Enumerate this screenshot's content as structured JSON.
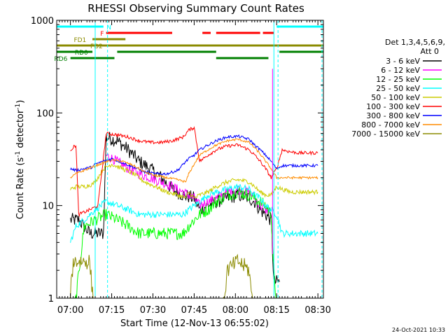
{
  "chart_data": {
    "type": "line",
    "title": "RHESSI Observing Summary Count Rates",
    "xlabel": "Start Time (12-Nov-13 06:55:02)",
    "ylabel_main": "Count Rate (s",
    "ylabel_sup": "-1",
    "ylabel_tail": " detector",
    "ylabel_end": ")",
    "yscale": "log",
    "ylim": [
      1,
      1000
    ],
    "xlim_minutes": [
      0,
      97
    ],
    "x_ticks": [
      {
        "t": 5,
        "label": "07:00"
      },
      {
        "t": 20,
        "label": "07:15"
      },
      {
        "t": 35,
        "label": "07:30"
      },
      {
        "t": 50,
        "label": "07:45"
      },
      {
        "t": 65,
        "label": "08:00"
      },
      {
        "t": 80,
        "label": "08:15"
      },
      {
        "t": 95,
        "label": "08:30"
      }
    ],
    "y_ticks": [
      {
        "v": 1,
        "label": "1"
      },
      {
        "v": 10,
        "label": "10"
      },
      {
        "v": 100,
        "label": "100"
      },
      {
        "v": 1000,
        "label": "1000"
      }
    ],
    "legend_header": [
      "Det 1,3,4,5,6,9,",
      "Att 0"
    ],
    "series": [
      {
        "name": "3 - 6 keV",
        "color": "#000000",
        "level": "baseline"
      },
      {
        "name": "6 - 12 keV",
        "color": "#ff00ff",
        "level": "baseline"
      },
      {
        "name": "12 - 25 keV",
        "color": "#00ff00",
        "level": "baseline"
      },
      {
        "name": "25 - 50 keV",
        "color": "#00ffff",
        "level": "baseline"
      },
      {
        "name": "50 - 100 keV",
        "color": "#cccc00",
        "level": "baseline"
      },
      {
        "name": "100 - 300 keV",
        "color": "#ff0000",
        "level": "baseline"
      },
      {
        "name": "300 - 800 keV",
        "color": "#0000ff",
        "level": "baseline"
      },
      {
        "name": "800 - 7000 keV",
        "color": "#ff8c00",
        "level": "baseline"
      },
      {
        "name": "7000 - 15000 keV",
        "color": "#8b8b00",
        "level": "baseline"
      }
    ],
    "series_points": [
      {
        "idx": 0,
        "pts": [
          [
            5,
            7
          ],
          [
            8,
            7
          ],
          [
            12,
            5
          ],
          [
            14,
            5
          ],
          [
            17,
            5
          ],
          [
            18,
            55
          ],
          [
            22,
            50
          ],
          [
            26,
            40
          ],
          [
            30,
            30
          ],
          [
            34,
            25
          ],
          [
            38,
            20
          ],
          [
            42,
            15
          ],
          [
            46,
            13
          ],
          [
            50,
            12
          ],
          [
            52,
            9
          ],
          [
            55,
            10
          ],
          [
            58,
            11
          ],
          [
            62,
            12
          ],
          [
            66,
            13
          ],
          [
            70,
            12
          ],
          [
            72,
            11
          ],
          [
            74,
            9
          ],
          [
            76,
            8
          ],
          [
            78,
            7
          ],
          [
            79,
            1.5
          ],
          [
            81,
            1.5
          ]
        ]
      },
      {
        "idx": 1,
        "pts": [
          [
            18,
            35
          ],
          [
            22,
            30
          ],
          [
            26,
            25
          ],
          [
            30,
            22
          ],
          [
            34,
            20
          ],
          [
            38,
            18
          ],
          [
            42,
            16
          ],
          [
            46,
            14
          ],
          [
            50,
            12
          ],
          [
            52,
            10
          ],
          [
            55,
            11
          ],
          [
            58,
            12
          ],
          [
            62,
            14
          ],
          [
            66,
            15
          ],
          [
            70,
            14
          ],
          [
            72,
            12
          ],
          [
            74,
            10
          ],
          [
            76,
            9
          ],
          [
            78,
            9
          ]
        ]
      },
      {
        "idx": 2,
        "pts": [
          [
            5,
            0.5
          ],
          [
            7,
            1
          ],
          [
            10,
            6
          ],
          [
            14,
            7
          ],
          [
            18,
            8
          ],
          [
            22,
            7
          ],
          [
            26,
            6
          ],
          [
            30,
            5
          ],
          [
            34,
            5
          ],
          [
            38,
            5
          ],
          [
            42,
            5
          ],
          [
            46,
            5
          ],
          [
            48,
            6
          ],
          [
            50,
            7
          ],
          [
            52,
            8
          ],
          [
            55,
            9
          ],
          [
            58,
            11
          ],
          [
            62,
            13
          ],
          [
            66,
            14
          ],
          [
            70,
            13
          ],
          [
            72,
            12
          ],
          [
            74,
            11
          ],
          [
            76,
            10
          ],
          [
            78,
            8
          ],
          [
            80,
            0.5
          ],
          [
            82,
            0.5
          ]
        ]
      },
      {
        "idx": 3,
        "pts": [
          [
            5,
            4
          ],
          [
            7,
            6
          ],
          [
            10,
            7
          ],
          [
            14,
            9
          ],
          [
            18,
            11
          ],
          [
            22,
            10
          ],
          [
            26,
            9
          ],
          [
            30,
            8
          ],
          [
            34,
            8
          ],
          [
            38,
            8
          ],
          [
            42,
            8
          ],
          [
            46,
            8
          ],
          [
            48,
            9
          ],
          [
            50,
            10
          ],
          [
            52,
            11
          ],
          [
            55,
            13
          ],
          [
            58,
            14
          ],
          [
            62,
            15
          ],
          [
            66,
            16
          ],
          [
            70,
            15
          ],
          [
            72,
            13
          ],
          [
            74,
            12
          ],
          [
            76,
            10
          ],
          [
            78,
            9
          ],
          [
            80,
            8
          ],
          [
            82,
            5
          ],
          [
            85,
            5
          ],
          [
            88,
            5
          ],
          [
            91,
            5
          ],
          [
            95,
            5
          ]
        ]
      },
      {
        "idx": 4,
        "pts": [
          [
            5,
            15
          ],
          [
            7,
            16
          ],
          [
            10,
            16
          ],
          [
            13,
            17
          ],
          [
            14,
            18
          ],
          [
            17,
            25
          ],
          [
            20,
            28
          ],
          [
            24,
            25
          ],
          [
            28,
            22
          ],
          [
            32,
            18
          ],
          [
            36,
            16
          ],
          [
            40,
            14
          ],
          [
            44,
            13
          ],
          [
            47,
            12
          ],
          [
            48,
            14
          ],
          [
            50,
            12
          ],
          [
            52,
            13
          ],
          [
            55,
            14
          ],
          [
            58,
            16
          ],
          [
            62,
            18
          ],
          [
            66,
            19
          ],
          [
            70,
            18
          ],
          [
            72,
            16
          ],
          [
            74,
            14
          ],
          [
            76,
            13
          ],
          [
            78,
            13
          ],
          [
            80,
            16
          ],
          [
            82,
            15
          ],
          [
            85,
            14
          ],
          [
            88,
            14
          ],
          [
            91,
            14
          ],
          [
            95,
            14
          ]
        ]
      },
      {
        "idx": 5,
        "pts": [
          [
            5,
            40
          ],
          [
            7,
            45
          ],
          [
            8,
            8
          ],
          [
            12,
            9
          ],
          [
            15,
            10
          ],
          [
            18,
            60
          ],
          [
            22,
            58
          ],
          [
            26,
            55
          ],
          [
            30,
            50
          ],
          [
            34,
            48
          ],
          [
            38,
            48
          ],
          [
            42,
            50
          ],
          [
            46,
            55
          ],
          [
            48,
            65
          ],
          [
            50,
            70
          ],
          [
            52,
            30
          ],
          [
            55,
            35
          ],
          [
            58,
            40
          ],
          [
            62,
            44
          ],
          [
            66,
            45
          ],
          [
            70,
            40
          ],
          [
            72,
            35
          ],
          [
            74,
            30
          ],
          [
            76,
            25
          ],
          [
            78,
            20
          ],
          [
            80,
            25
          ],
          [
            82,
            40
          ],
          [
            85,
            38
          ],
          [
            88,
            37
          ],
          [
            91,
            37
          ],
          [
            95,
            37
          ]
        ]
      },
      {
        "idx": 6,
        "pts": [
          [
            5,
            25
          ],
          [
            7,
            24
          ],
          [
            10,
            25
          ],
          [
            13,
            26
          ],
          [
            14,
            28
          ],
          [
            17,
            30
          ],
          [
            20,
            32
          ],
          [
            24,
            29
          ],
          [
            28,
            26
          ],
          [
            32,
            23
          ],
          [
            36,
            22
          ],
          [
            40,
            22
          ],
          [
            44,
            24
          ],
          [
            47,
            30
          ],
          [
            48,
            32
          ],
          [
            50,
            35
          ],
          [
            52,
            40
          ],
          [
            55,
            45
          ],
          [
            58,
            50
          ],
          [
            62,
            55
          ],
          [
            66,
            56
          ],
          [
            70,
            52
          ],
          [
            72,
            45
          ],
          [
            74,
            40
          ],
          [
            76,
            35
          ],
          [
            78,
            30
          ],
          [
            80,
            25
          ],
          [
            82,
            27
          ],
          [
            85,
            27
          ],
          [
            88,
            27
          ],
          [
            91,
            27
          ],
          [
            95,
            27
          ]
        ]
      },
      {
        "idx": 7,
        "pts": [
          [
            5,
            20
          ],
          [
            7,
            22
          ],
          [
            10,
            24
          ],
          [
            13,
            26
          ],
          [
            17,
            29
          ],
          [
            20,
            31
          ],
          [
            24,
            30
          ],
          [
            28,
            27
          ],
          [
            32,
            23
          ],
          [
            36,
            21
          ],
          [
            40,
            20
          ],
          [
            44,
            19
          ],
          [
            47,
            18
          ],
          [
            48,
            22
          ],
          [
            50,
            28
          ],
          [
            52,
            35
          ],
          [
            55,
            40
          ],
          [
            58,
            45
          ],
          [
            62,
            50
          ],
          [
            66,
            52
          ],
          [
            70,
            48
          ],
          [
            72,
            42
          ],
          [
            74,
            36
          ],
          [
            76,
            30
          ],
          [
            78,
            25
          ],
          [
            80,
            20
          ],
          [
            82,
            20
          ],
          [
            85,
            20
          ],
          [
            88,
            20
          ],
          [
            91,
            20
          ],
          [
            95,
            20
          ]
        ]
      },
      {
        "idx": 8,
        "pts": [
          [
            4,
            0.5
          ],
          [
            6,
            2.5
          ],
          [
            12,
            2.5
          ],
          [
            14,
            0.5
          ],
          [
            60,
            0.5
          ],
          [
            62,
            2
          ],
          [
            66,
            2.5
          ],
          [
            70,
            2
          ],
          [
            72,
            0.5
          ],
          [
            80,
            0.5
          ]
        ]
      }
    ],
    "flag_bars": [
      {
        "label": "N",
        "color": "#00ffff",
        "level": 1,
        "segments": [
          [
            0,
            17
          ],
          [
            80,
            97
          ]
        ]
      },
      {
        "label": "F",
        "color": "#ff0000",
        "level": 2,
        "segments": [
          [
            18,
            42
          ],
          [
            53,
            56
          ],
          [
            58,
            74
          ],
          [
            75,
            79
          ]
        ]
      },
      {
        "label": "FD1",
        "color": "#8b8b00",
        "level": 3,
        "segments": [
          [
            13,
            25
          ]
        ]
      },
      {
        "label": "FD2",
        "color": "#8b8b00",
        "level": 4,
        "segments": [
          [
            0,
            97
          ]
        ]
      },
      {
        "label": "RD0",
        "color": "#008000",
        "level": 5,
        "segments": [
          [
            0,
            13
          ],
          [
            22,
            58
          ],
          [
            81,
            97
          ]
        ]
      },
      {
        "label": "RD6",
        "color": "#008000",
        "level": 6,
        "segments": [
          [
            5,
            21
          ],
          [
            58,
            77
          ]
        ]
      }
    ],
    "vertical_markers": [
      {
        "t": 0,
        "color": "#00ffff",
        "style": "solid"
      },
      {
        "t": 14,
        "color": "#00ffff",
        "style": "solid"
      },
      {
        "t": 18.5,
        "color": "#00ffff",
        "style": "dashed"
      },
      {
        "t": 79,
        "color": "#00ffff",
        "style": "solid"
      },
      {
        "t": 80.5,
        "color": "#00ffff",
        "style": "dashed"
      },
      {
        "t": 96.5,
        "color": "#00ffff",
        "style": "dashed"
      }
    ]
  },
  "footer_date": "24-Oct-2021 10:33"
}
